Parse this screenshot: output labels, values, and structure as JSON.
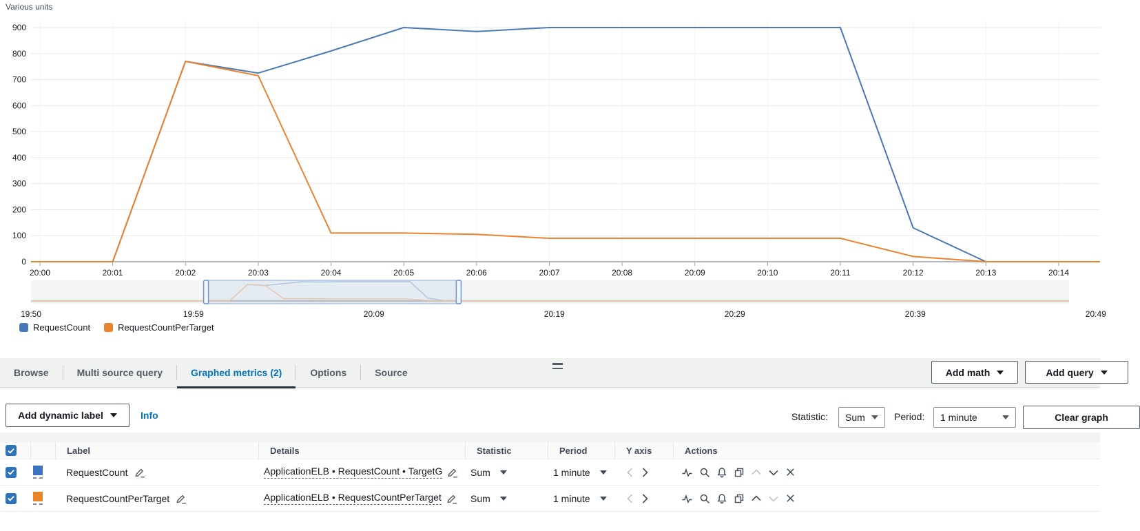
{
  "chart_data": {
    "type": "line",
    "title": "Various units",
    "x_ticks": [
      "20:00",
      "20:01",
      "20:02",
      "20:03",
      "20:04",
      "20:05",
      "20:06",
      "20:07",
      "20:08",
      "20:09",
      "20:10",
      "20:11",
      "20:12",
      "20:13",
      "20:14"
    ],
    "y_ticks": [
      "900",
      "800",
      "700",
      "600",
      "500",
      "400",
      "300",
      "200",
      "100",
      "0"
    ],
    "ylim": [
      0,
      900
    ],
    "grid": true,
    "legend_position": "bottom-left",
    "series": [
      {
        "name": "RequestCount",
        "color": "#4a78b7",
        "values": [
          0,
          0,
          770,
          725,
          810,
          900,
          885,
          900,
          900,
          900,
          900,
          900,
          130,
          0,
          0
        ]
      },
      {
        "name": "RequestCountPerTarget",
        "color": "#e9832e",
        "values": [
          0,
          0,
          770,
          715,
          110,
          110,
          105,
          90,
          90,
          90,
          90,
          90,
          20,
          0,
          0
        ]
      }
    ],
    "timeline": {
      "tick_labels": [
        "19:50",
        "19:59",
        "20:09",
        "20:19",
        "20:29",
        "20:39",
        "20:49"
      ],
      "start_time": "19:50",
      "selection": {
        "start_offset_min": 9.7,
        "end_offset_min": 23.7
      }
    }
  },
  "tabs": {
    "items": [
      "Browse",
      "Multi source query",
      "Graphed metrics (2)",
      "Options",
      "Source"
    ],
    "active": "Graphed metrics (2)"
  },
  "actions_bar": {
    "add_math": "Add math",
    "add_query": "Add query"
  },
  "toolbar": {
    "add_dynamic_label": "Add dynamic label",
    "info": "Info",
    "statistic_label": "Statistic:",
    "statistic_value": "Sum",
    "period_label": "Period:",
    "period_value": "1 minute",
    "clear_graph": "Clear graph"
  },
  "metrics_table": {
    "columns": [
      "Label",
      "Details",
      "Statistic",
      "Period",
      "Y axis",
      "Actions"
    ],
    "rows": [
      {
        "label": "RequestCount",
        "details": "ApplicationELB • RequestCount • TargetG",
        "statistic": "Sum",
        "period": "1 minute",
        "color": "#3e73c2"
      },
      {
        "label": "RequestCountPerTarget",
        "details": "ApplicationELB • RequestCountPerTarget",
        "statistic": "Sum",
        "period": "1 minute",
        "color": "#e8842c"
      }
    ]
  }
}
